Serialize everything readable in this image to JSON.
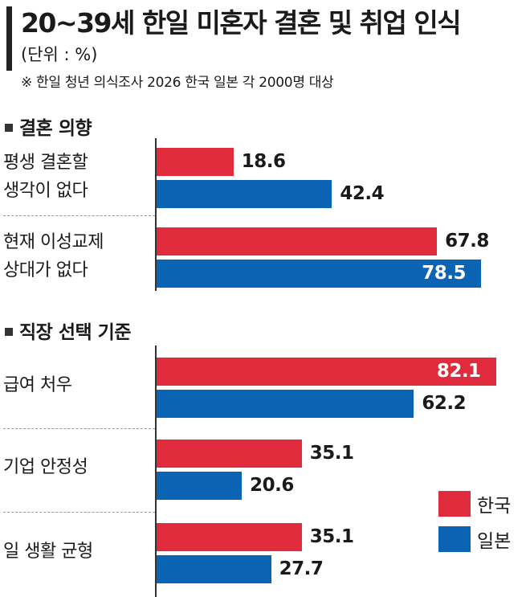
{
  "header": {
    "title": "20~39세 한일 미혼자 결혼 및 취업 인식",
    "unit": "(단위 : %)",
    "note": "※ 한일 청년 의식조사 2026 한국 일본 각 2000명 대상"
  },
  "colors": {
    "korea": "#e02b3c",
    "japan": "#0a63b3"
  },
  "legend": {
    "korea": "한국",
    "japan": "일본"
  },
  "chart_data": [
    {
      "type": "bar",
      "orientation": "horizontal",
      "title": "결혼 의향",
      "categories": [
        "평생 결혼할 생각이 없다",
        "현재 이성교제 상대가 없다"
      ],
      "category_lines": [
        [
          "평생 결혼할",
          "생각이 없다"
        ],
        [
          "현재 이성교제",
          "상대가 없다"
        ]
      ],
      "series": [
        {
          "name": "한국",
          "values": [
            18.6,
            67.8
          ]
        },
        {
          "name": "일본",
          "values": [
            42.4,
            78.5
          ]
        }
      ],
      "xlim": [
        0,
        100
      ],
      "grid": false,
      "legend_position": "bottom-right"
    },
    {
      "type": "bar",
      "orientation": "horizontal",
      "title": "직장 선택 기준",
      "categories": [
        "급여 처우",
        "기업 안정성",
        "일 생활 균형"
      ],
      "category_lines": [
        [
          "급여 처우"
        ],
        [
          "기업 안정성"
        ],
        [
          "일 생활 균형"
        ]
      ],
      "series": [
        {
          "name": "한국",
          "values": [
            82.1,
            35.1,
            35.1
          ]
        },
        {
          "name": "일본",
          "values": [
            62.2,
            20.6,
            27.7
          ]
        }
      ],
      "xlim": [
        0,
        100
      ],
      "grid": false,
      "legend_position": "bottom-right"
    }
  ]
}
